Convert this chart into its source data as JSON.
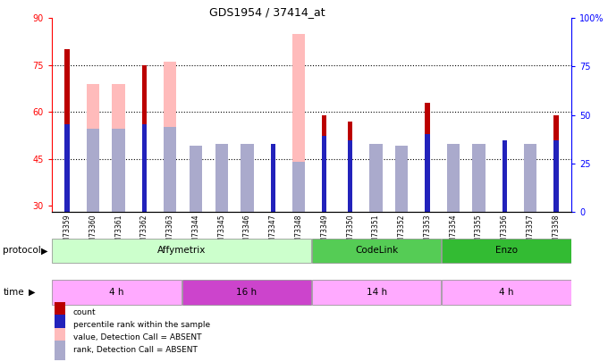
{
  "title": "GDS1954 / 37414_at",
  "samples": [
    "GSM73359",
    "GSM73360",
    "GSM73361",
    "GSM73362",
    "GSM73363",
    "GSM73344",
    "GSM73345",
    "GSM73346",
    "GSM73347",
    "GSM73348",
    "GSM73349",
    "GSM73350",
    "GSM73351",
    "GSM73352",
    "GSM73353",
    "GSM73354",
    "GSM73355",
    "GSM73356",
    "GSM73357",
    "GSM73358"
  ],
  "red_values": [
    80,
    0,
    0,
    75,
    0,
    0,
    0,
    0,
    46,
    0,
    59,
    57,
    0,
    0,
    63,
    0,
    0,
    48,
    0,
    59
  ],
  "pink_values": [
    0,
    69,
    69,
    0,
    76,
    0,
    43,
    43,
    0,
    85,
    0,
    0,
    44,
    49,
    0,
    48,
    49,
    0,
    48,
    0
  ],
  "blue_values": [
    45,
    0,
    0,
    45,
    0,
    0,
    0,
    0,
    35,
    0,
    39,
    37,
    0,
    0,
    40,
    0,
    0,
    37,
    0,
    37
  ],
  "lightblue_values": [
    0,
    43,
    43,
    0,
    44,
    34,
    35,
    35,
    0,
    26,
    0,
    0,
    35,
    34,
    0,
    35,
    35,
    0,
    35,
    0
  ],
  "ylim_left": [
    28,
    90
  ],
  "ylim_right": [
    0,
    100
  ],
  "yticks_left": [
    30,
    45,
    60,
    75,
    90
  ],
  "yticks_right": [
    0,
    25,
    50,
    75,
    100
  ],
  "grid_values": [
    45,
    60,
    75
  ],
  "protocol_groups": [
    {
      "label": "Affymetrix",
      "start": 0,
      "end": 10,
      "color": "#ccffcc"
    },
    {
      "label": "CodeLink",
      "start": 10,
      "end": 15,
      "color": "#55cc55"
    },
    {
      "label": "Enzo",
      "start": 15,
      "end": 20,
      "color": "#33bb33"
    }
  ],
  "time_groups": [
    {
      "label": "4 h",
      "start": 0,
      "end": 5,
      "color": "#ffaaff"
    },
    {
      "label": "16 h",
      "start": 5,
      "end": 10,
      "color": "#cc44cc"
    },
    {
      "label": "14 h",
      "start": 10,
      "end": 15,
      "color": "#ffaaff"
    },
    {
      "label": "4 h",
      "start": 15,
      "end": 20,
      "color": "#ffaaff"
    }
  ],
  "red_color": "#bb0000",
  "pink_color": "#ffbbbb",
  "blue_color": "#2222bb",
  "lightblue_color": "#aaaacc",
  "legend_items": [
    {
      "label": "count",
      "color": "#bb0000"
    },
    {
      "label": "percentile rank within the sample",
      "color": "#2222bb"
    },
    {
      "label": "value, Detection Call = ABSENT",
      "color": "#ffbbbb"
    },
    {
      "label": "rank, Detection Call = ABSENT",
      "color": "#aaaacc"
    }
  ]
}
